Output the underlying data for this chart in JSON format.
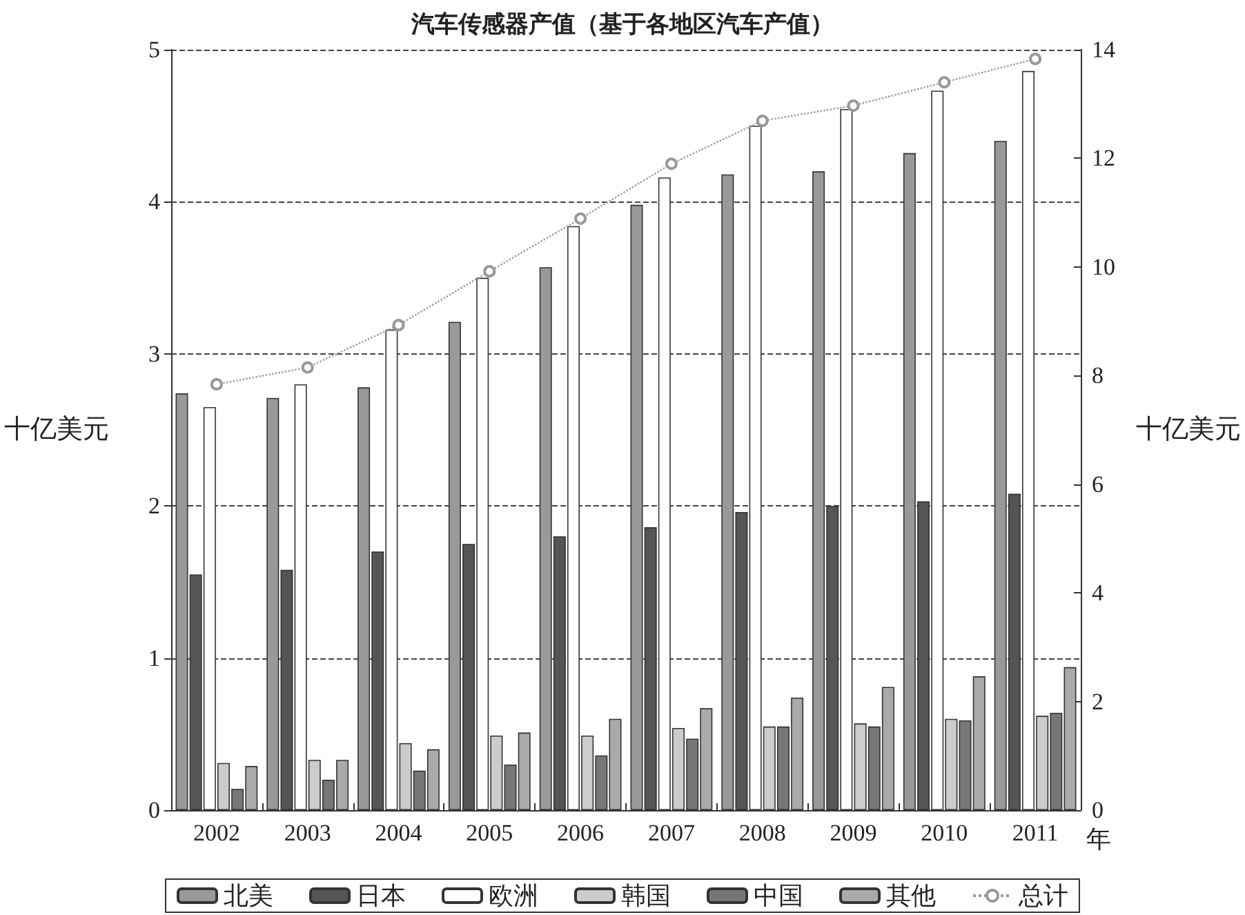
{
  "chart_data": {
    "type": "bar",
    "title": "汽车传感器产值（基于各地区汽车产值）",
    "xlabel": "年",
    "ylabel": "十亿美元",
    "y2label": "十亿美元",
    "categories": [
      "2002",
      "2003",
      "2004",
      "2005",
      "2006",
      "2007",
      "2008",
      "2009",
      "2010",
      "2011"
    ],
    "series": [
      {
        "name": "北美",
        "color": "#999999",
        "values": [
          2.74,
          2.71,
          2.78,
          3.21,
          3.57,
          3.98,
          4.18,
          4.2,
          4.32,
          4.4
        ]
      },
      {
        "name": "日本",
        "color": "#555555",
        "values": [
          1.55,
          1.58,
          1.7,
          1.75,
          1.8,
          1.86,
          1.96,
          2.0,
          2.03,
          2.08
        ]
      },
      {
        "name": "欧洲",
        "color": "#ffffff",
        "values": [
          2.65,
          2.8,
          3.16,
          3.5,
          3.84,
          4.16,
          4.5,
          4.61,
          4.73,
          4.86
        ]
      },
      {
        "name": "韩国",
        "color": "#cccccc",
        "values": [
          0.31,
          0.33,
          0.44,
          0.49,
          0.49,
          0.54,
          0.55,
          0.57,
          0.6,
          0.62
        ]
      },
      {
        "name": "中国",
        "color": "#777777",
        "values": [
          0.14,
          0.2,
          0.26,
          0.3,
          0.36,
          0.47,
          0.55,
          0.55,
          0.59,
          0.64
        ]
      },
      {
        "name": "其他",
        "color": "#aaaaaa",
        "values": [
          0.29,
          0.33,
          0.4,
          0.51,
          0.6,
          0.67,
          0.74,
          0.81,
          0.88,
          0.94
        ]
      },
      {
        "name": "总计",
        "type": "line",
        "axis": "y2",
        "color": "#999999",
        "marker": "circle",
        "line_style": "dotted",
        "values": [
          7.84,
          8.15,
          8.93,
          9.92,
          10.89,
          11.9,
          12.69,
          12.97,
          13.4,
          13.83
        ]
      }
    ],
    "ylim": [
      0,
      5
    ],
    "yticks": [
      0,
      1,
      2,
      3,
      4,
      5
    ],
    "y2lim": [
      0,
      14
    ],
    "y2ticks": [
      0,
      2,
      4,
      6,
      8,
      10,
      12,
      14
    ],
    "grid": "y",
    "legend": "bottom"
  }
}
